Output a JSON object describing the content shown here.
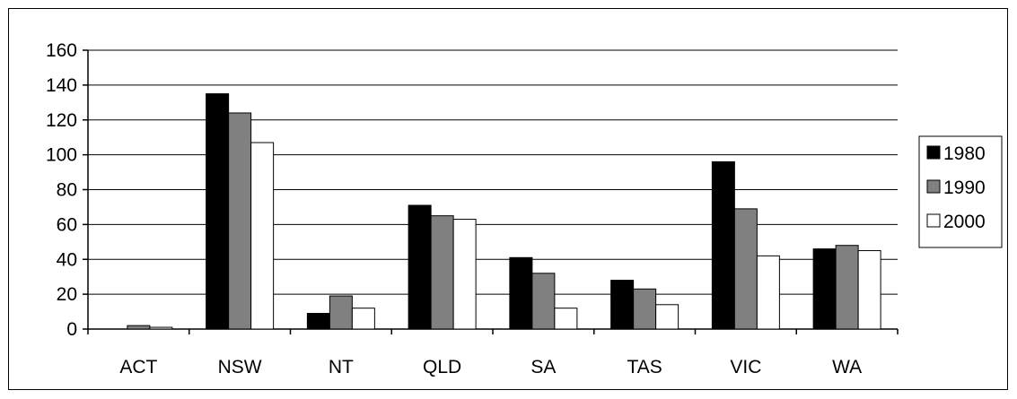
{
  "chart_data": {
    "type": "bar",
    "categories": [
      "ACT",
      "NSW",
      "NT",
      "QLD",
      "SA",
      "TAS",
      "VIC",
      "WA"
    ],
    "series": [
      {
        "name": "1980",
        "values": [
          0,
          135,
          9,
          71,
          41,
          28,
          96,
          46
        ],
        "color": "#000000"
      },
      {
        "name": "1990",
        "values": [
          2,
          124,
          19,
          65,
          32,
          23,
          69,
          48
        ],
        "color": "#808080"
      },
      {
        "name": "2000",
        "values": [
          1,
          107,
          12,
          63,
          12,
          14,
          42,
          45
        ],
        "color": "#ffffff"
      }
    ],
    "y_ticks": [
      "0",
      "20",
      "40",
      "60",
      "80",
      "100",
      "120",
      "140",
      "160"
    ],
    "ylim": [
      0,
      160
    ],
    "grid": true,
    "legend_position": "right"
  }
}
